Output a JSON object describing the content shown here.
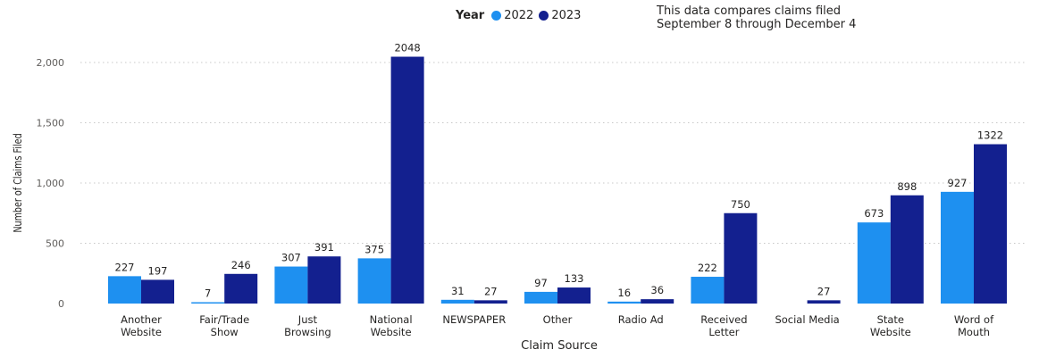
{
  "legend": {
    "title": "Year",
    "items": [
      {
        "label": "2022",
        "color": "#1e90f0"
      },
      {
        "label": "2023",
        "color": "#13208f"
      }
    ]
  },
  "note": {
    "line1": "This data compares claims filed",
    "line2": "September 8 through December 4"
  },
  "chart_data": {
    "type": "bar",
    "xlabel": "Claim Source",
    "ylabel": "Number of Claims Filed",
    "ylim": [
      0,
      2000
    ],
    "yticks": [
      0,
      500,
      1000,
      1500,
      2000
    ],
    "ytick_labels": [
      "0",
      "500",
      "1,000",
      "1,500",
      "2,000"
    ],
    "grid": true,
    "legend_position": "top-center",
    "categories": [
      [
        "Another",
        "Website"
      ],
      [
        "Fair/Trade",
        "Show"
      ],
      [
        "Just",
        "Browsing"
      ],
      [
        "National",
        "Website"
      ],
      [
        "NEWSPAPER"
      ],
      [
        "Other"
      ],
      [
        "Radio Ad"
      ],
      [
        "Received",
        "Letter"
      ],
      [
        "Social Media"
      ],
      [
        "State",
        "Website"
      ],
      [
        "Word of",
        "Mouth"
      ]
    ],
    "series": [
      {
        "name": "2022",
        "color": "#1e90f0",
        "values": [
          227,
          7,
          307,
          375,
          31,
          97,
          16,
          222,
          null,
          673,
          927
        ]
      },
      {
        "name": "2023",
        "color": "#13208f",
        "values": [
          197,
          246,
          391,
          2048,
          27,
          133,
          36,
          750,
          27,
          898,
          1322
        ]
      }
    ]
  }
}
